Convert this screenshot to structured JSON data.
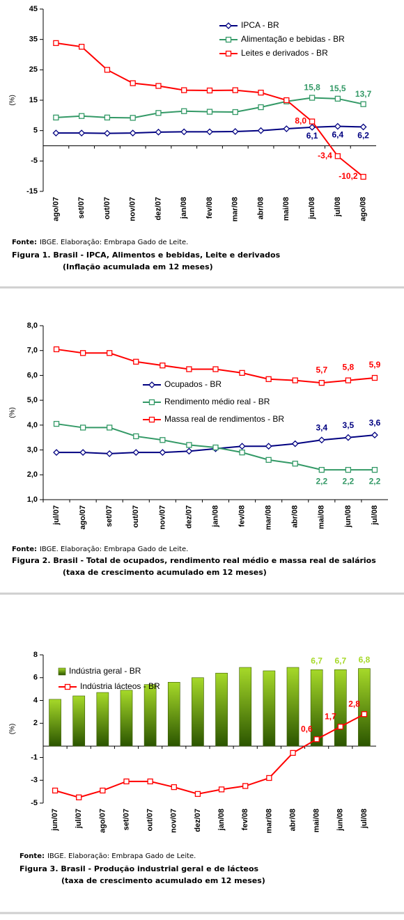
{
  "chart_data": [
    {
      "type": "line",
      "y_label": "(%)",
      "categories": [
        "ago/07",
        "set/07",
        "out/07",
        "nov/07",
        "dez/07",
        "jan/08",
        "fev/08",
        "mar/08",
        "abr/08",
        "mai/08",
        "jun/08",
        "jul/08",
        "ago/08"
      ],
      "ylim": [
        -15,
        45
      ],
      "yticks": [
        45,
        35,
        25,
        15,
        5,
        -5,
        -15
      ],
      "legend": "upper right",
      "grid": false,
      "series": [
        {
          "name": "IPCA - BR",
          "color": "#000080",
          "marker": "diamond",
          "values": [
            4.2,
            4.2,
            4.1,
            4.2,
            4.5,
            4.6,
            4.6,
            4.7,
            5.0,
            5.6,
            6.1,
            6.4,
            6.2
          ],
          "value_labels": [
            null,
            null,
            null,
            null,
            null,
            null,
            null,
            null,
            null,
            null,
            "6,1",
            "6,4",
            "6,2"
          ]
        },
        {
          "name": "Alimentação e bebidas - BR",
          "color": "#339966",
          "marker": "square",
          "values": [
            9.3,
            9.8,
            9.3,
            9.2,
            10.8,
            11.4,
            11.2,
            11.1,
            12.7,
            14.6,
            15.8,
            15.5,
            13.7
          ],
          "value_labels": [
            null,
            null,
            null,
            null,
            null,
            null,
            null,
            null,
            null,
            null,
            "15,8",
            "15,5",
            "13,7"
          ]
        },
        {
          "name": "Leites e derivados - BR",
          "color": "#ff0000",
          "marker": "square",
          "values": [
            33.8,
            32.6,
            25.0,
            20.6,
            19.7,
            18.3,
            18.2,
            18.3,
            17.5,
            15.0,
            8.0,
            -3.4,
            -10.2
          ],
          "value_labels": [
            null,
            null,
            null,
            null,
            null,
            null,
            null,
            null,
            null,
            null,
            "8,0",
            "-3,4",
            "-10,2"
          ]
        }
      ],
      "source_label": "Fonte:",
      "source": "IBGE. Elaboração: Embrapa Gado de Leite.",
      "caption": [
        "Figura 1. Brasil - IPCA, Alimentos e bebidas, Leite e derivados",
        "(Inflação acumulada em 12 meses)"
      ]
    },
    {
      "type": "line",
      "y_label": "(%)",
      "categories": [
        "jul/07",
        "ago/07",
        "set/07",
        "out/07",
        "nov/07",
        "dez/07",
        "jan/08",
        "fev/08",
        "mar/08",
        "abr/08",
        "mai/08",
        "jun/08",
        "jul/08"
      ],
      "ylim": [
        1,
        8
      ],
      "yticks": [
        {
          "value": 8,
          "label": "8,0"
        },
        {
          "value": 7,
          "label": "7,0"
        },
        {
          "value": 6,
          "label": "6,0"
        },
        {
          "value": 5,
          "label": "5,0"
        },
        {
          "value": 4,
          "label": "4,0"
        },
        {
          "value": 3,
          "label": "3,0"
        },
        {
          "value": 2,
          "label": "2,0"
        },
        {
          "value": 1,
          "label": "1,0"
        }
      ],
      "legend": "center",
      "grid": false,
      "series": [
        {
          "name": "Ocupados - BR",
          "color": "#000080",
          "marker": "diamond",
          "values": [
            2.9,
            2.9,
            2.85,
            2.9,
            2.9,
            2.95,
            3.05,
            3.15,
            3.15,
            3.25,
            3.4,
            3.5,
            3.6
          ],
          "value_labels": [
            null,
            null,
            null,
            null,
            null,
            null,
            null,
            null,
            null,
            null,
            "3,4",
            "3,5",
            "3,6"
          ]
        },
        {
          "name": "Rendimento médio real - BR",
          "color": "#339966",
          "marker": "square",
          "values": [
            4.05,
            3.9,
            3.9,
            3.55,
            3.4,
            3.2,
            3.1,
            2.9,
            2.6,
            2.45,
            2.2,
            2.2,
            2.2
          ],
          "value_labels": [
            null,
            null,
            null,
            null,
            null,
            null,
            null,
            null,
            null,
            null,
            "2,2",
            "2,2",
            "2,2"
          ]
        },
        {
          "name": "Massa real de rendimentos - BR",
          "color": "#ff0000",
          "marker": "square",
          "values": [
            7.05,
            6.9,
            6.9,
            6.55,
            6.4,
            6.25,
            6.25,
            6.1,
            5.85,
            5.8,
            5.7,
            5.8,
            5.9
          ],
          "value_labels": [
            null,
            null,
            null,
            null,
            null,
            null,
            null,
            null,
            null,
            null,
            "5,7",
            "5,8",
            "5,9"
          ]
        }
      ],
      "source_label": "Fonte:",
      "source": "IBGE. Elaboração: Embrapa Gado de Leite.",
      "caption": [
        "Figura 2. Brasil - Total de ocupados, rendimento real médio e massa real de salários",
        "(taxa de crescimento acumulado em 12 meses)"
      ]
    },
    {
      "type": "combo",
      "y_label": "(%)",
      "categories": [
        "jun/07",
        "jul/07",
        "ago/07",
        "set/07",
        "out/07",
        "nov/07",
        "dez/07",
        "jan/08",
        "fev/08",
        "mar/08",
        "abr/08",
        "mai/08",
        "jun/08",
        "jul/08"
      ],
      "ylim": [
        -5,
        8
      ],
      "yticks": [
        8,
        6,
        4,
        2,
        -1,
        -3,
        -5
      ],
      "legend": "upper left",
      "grid": false,
      "series": [
        {
          "name": "Indústria geral - BR",
          "type": "bar",
          "color": "#a6d929",
          "values": [
            4.1,
            4.4,
            4.7,
            4.9,
            5.4,
            5.6,
            6.0,
            6.4,
            6.9,
            6.6,
            6.9,
            6.7,
            6.7,
            6.8
          ],
          "value_labels": [
            null,
            null,
            null,
            null,
            null,
            null,
            null,
            null,
            null,
            null,
            null,
            "6,7",
            "6,7",
            "6,8"
          ]
        },
        {
          "name": "Indústria lácteos - BR",
          "type": "line",
          "color": "#ff0000",
          "marker": "square",
          "values": [
            -3.9,
            -4.5,
            -3.9,
            -3.1,
            -3.1,
            -3.6,
            -4.2,
            -3.8,
            -3.5,
            -2.8,
            -0.6,
            0.6,
            1.7,
            2.8
          ],
          "value_labels": [
            null,
            null,
            null,
            null,
            null,
            null,
            null,
            null,
            null,
            null,
            null,
            "0,6",
            "1,7",
            "2,8"
          ]
        }
      ],
      "source_label": "Fonte:",
      "source": "IBGE. Elaboração: Embrapa Gado de Leite.",
      "caption": [
        "Figura 3. Brasil - Produção industrial geral e de lácteos",
        "(taxa de crescimento acumulado em 12 meses)"
      ]
    }
  ]
}
